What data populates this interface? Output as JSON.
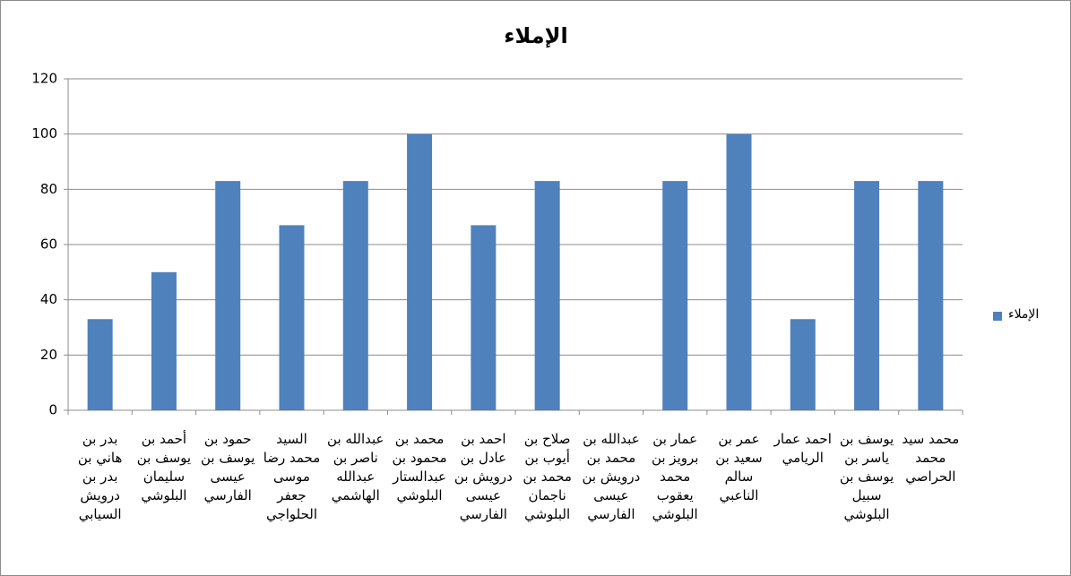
{
  "chart_data": {
    "type": "bar",
    "title": "الإملاء",
    "categories": [
      "بدر بن هاني بن بدر بن درويش السيابي",
      "أحمد بن يوسف بن سليمان البلوشي",
      "حمود بن يوسف بن عيسى الفارسي",
      "السيد محمد رضا موسى جعفر الحلواجي",
      "عبدالله بن ناصر بن عبدالله الهاشمي",
      "محمد بن محمود بن عبدالستار البلوشي",
      "احمد بن عادل بن درويش بن عيسى الفارسي",
      "صلاح بن أيوب بن محمد بن ناجمان البلوشي",
      "عبدالله بن محمد بن درويش بن عيسى الفارسي",
      "عمار بن برويز بن محمد يعقوب البلوشي",
      "عمر بن سعيد بن سالم الناعبي",
      "احمد عمار الريامي",
      "يوسف بن ياسر بن يوسف بن سبيل البلوشي",
      "محمد سيد محمد الحراصي"
    ],
    "series": [
      {
        "name": "الإملاء",
        "color": "#4f81bd",
        "values": [
          33,
          50,
          83,
          67,
          83,
          100,
          67,
          83,
          0,
          83,
          100,
          33,
          83,
          83
        ]
      }
    ],
    "ylim": [
      0,
      120
    ],
    "yticks": [
      0,
      20,
      40,
      60,
      80,
      100,
      120
    ],
    "grid": true,
    "legend": "right"
  }
}
